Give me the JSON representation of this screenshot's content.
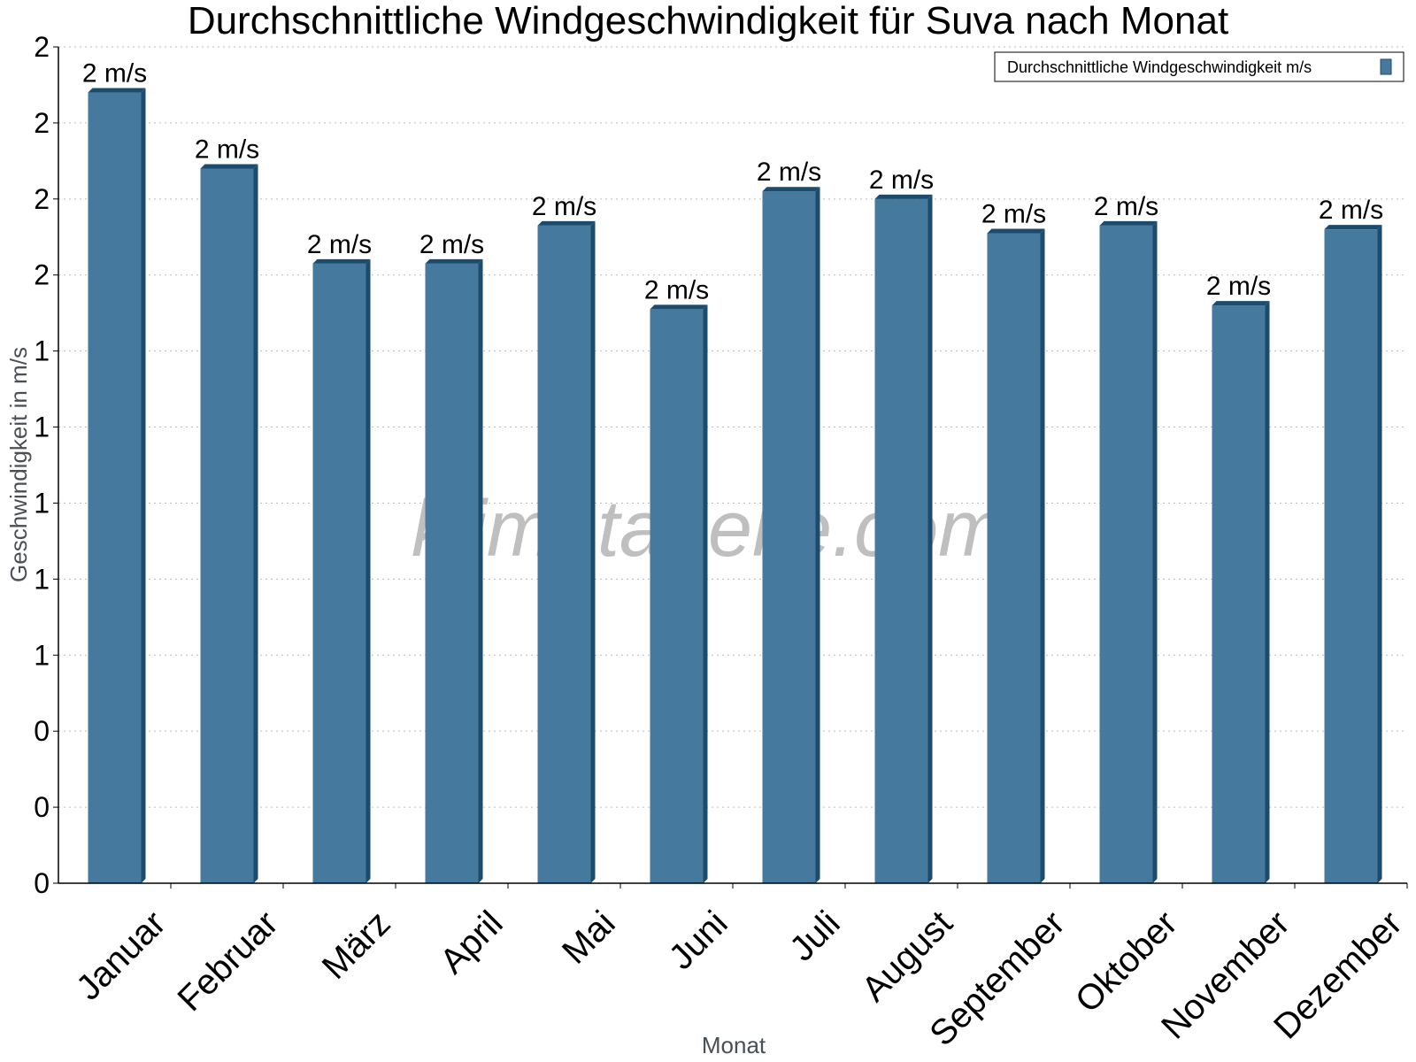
{
  "chart_data": {
    "type": "bar",
    "title": "Durchschnittliche Windgeschwindigkeit für Suva nach Monat",
    "xlabel": "Monat",
    "ylabel": "Geschwindigkeit in m/s",
    "categories": [
      "Januar",
      "Februar",
      "März",
      "April",
      "Mai",
      "Juni",
      "Juli",
      "August",
      "September",
      "Oktober",
      "November",
      "Dezember"
    ],
    "series": [
      {
        "name": "Durchschnittliche Windgeschwindigkeit m/s",
        "values": [
          2.08,
          1.88,
          1.63,
          1.63,
          1.73,
          1.51,
          1.82,
          1.8,
          1.71,
          1.73,
          1.52,
          1.72
        ],
        "data_labels": [
          "2 m/s",
          "2 m/s",
          "2 m/s",
          "2 m/s",
          "2 m/s",
          "2 m/s",
          "2 m/s",
          "2 m/s",
          "2 m/s",
          "2 m/s",
          "2 m/s",
          "2 m/s"
        ],
        "color": "#457a9e",
        "side_color": "#1b4c6e"
      }
    ],
    "ylim": [
      0,
      2.2
    ],
    "yticks": [
      0,
      0.2,
      0.4,
      0.6,
      0.8,
      1.0,
      1.2,
      1.4,
      1.6,
      1.8,
      2.0,
      2.2
    ],
    "ytick_labels": [
      "0",
      "0",
      "0",
      "1",
      "1",
      "1",
      "1",
      "1",
      "2",
      "2",
      "2",
      "2"
    ],
    "grid": true,
    "legend_position": "top-right",
    "watermark": "klimatabelle.com"
  }
}
